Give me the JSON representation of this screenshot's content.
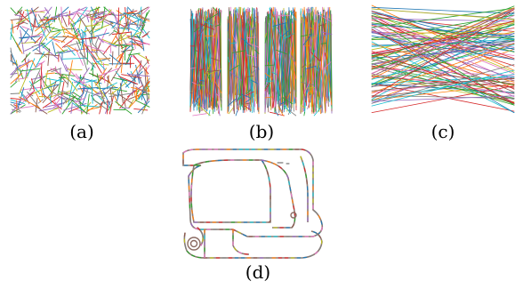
{
  "figure": {
    "panels": [
      {
        "id": "a",
        "caption": "(a)",
        "pattern": "random-strokes"
      },
      {
        "id": "b",
        "caption": "(b)",
        "pattern": "four-vertical-bands"
      },
      {
        "id": "c",
        "caption": "(c)",
        "pattern": "horizontal-crossing-lines"
      },
      {
        "id": "d",
        "caption": "(d)",
        "pattern": "coffee-maker-outline"
      }
    ],
    "palette": [
      "#1f77b4",
      "#ff7f0e",
      "#2ca02c",
      "#d62728",
      "#9467bd",
      "#8c564b",
      "#e377c2",
      "#7f7f7f",
      "#bcbd22",
      "#17becf"
    ]
  }
}
